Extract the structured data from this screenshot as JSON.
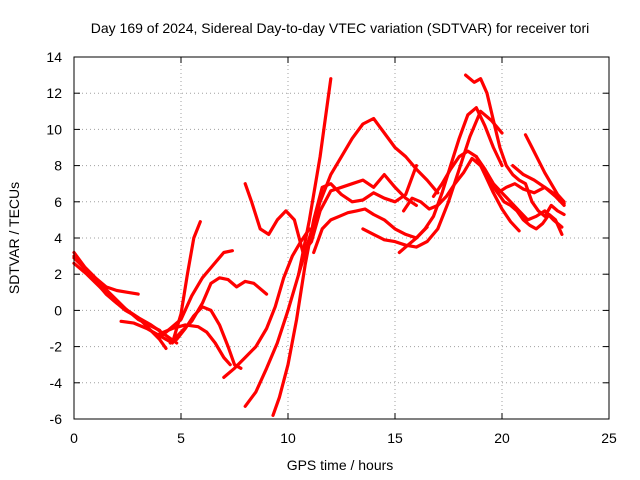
{
  "chart_data": {
    "type": "scatter",
    "title": "Day 169 of 2024, Sidereal Day-to-day VTEC variation (SDTVAR) for receiver tori",
    "xlabel": "GPS time / hours",
    "ylabel": "SDTVAR / TECUs",
    "xlim": [
      0,
      25
    ],
    "ylim": [
      -6,
      14
    ],
    "xticks": [
      0,
      5,
      10,
      15,
      20,
      25
    ],
    "yticks": [
      -6,
      -4,
      -2,
      0,
      2,
      4,
      6,
      8,
      10,
      12,
      14
    ],
    "grid": true,
    "marker": "+",
    "color": "#ff0000",
    "series": [
      {
        "x": [
          0.0,
          0.5,
          1.0,
          1.5,
          2.0,
          2.5,
          3.0
        ],
        "y": [
          3.2,
          2.4,
          1.8,
          1.3,
          1.1,
          1.0,
          0.9
        ]
      },
      {
        "x": [
          0.0,
          0.5,
          1.0,
          1.5,
          2.0,
          2.5,
          3.0,
          3.5,
          4.0,
          4.3
        ],
        "y": [
          3.0,
          2.3,
          1.6,
          0.9,
          0.4,
          0.0,
          -0.4,
          -1.0,
          -1.6,
          -2.1
        ]
      },
      {
        "x": [
          0.0,
          0.6,
          1.2,
          1.8,
          2.4,
          3.0,
          3.5,
          4.0
        ],
        "y": [
          2.9,
          2.2,
          1.5,
          0.8,
          0.1,
          -0.5,
          -0.8,
          -1.1
        ]
      },
      {
        "x": [
          0.0,
          0.6,
          1.2,
          1.8,
          2.4,
          3.0,
          3.6,
          4.2,
          4.8
        ],
        "y": [
          2.6,
          2.0,
          1.3,
          0.6,
          0.0,
          -0.4,
          -0.8,
          -1.3,
          -1.8
        ]
      },
      {
        "x": [
          2.2,
          2.8,
          3.4,
          4.0,
          4.6,
          5.0,
          5.3,
          5.6,
          5.9
        ],
        "y": [
          -0.6,
          -0.7,
          -1.0,
          -1.4,
          -1.8,
          -0.2,
          2.0,
          4.0,
          4.9
        ]
      },
      {
        "x": [
          4.0,
          4.5,
          5.0,
          5.5,
          6.0,
          6.5,
          7.0,
          7.4
        ],
        "y": [
          -1.5,
          -1.0,
          -0.5,
          0.8,
          1.8,
          2.5,
          3.2,
          3.3
        ]
      },
      {
        "x": [
          4.5,
          5.0,
          5.5,
          6.0,
          6.4,
          6.8,
          7.2,
          7.6,
          8.0,
          8.4,
          9.0
        ],
        "y": [
          -1.8,
          -1.2,
          -0.6,
          0.4,
          1.5,
          1.8,
          1.7,
          1.3,
          1.6,
          1.5,
          0.9
        ]
      },
      {
        "x": [
          4.8,
          5.2,
          5.6,
          6.0,
          6.4,
          6.8,
          7.2,
          7.5,
          7.8
        ],
        "y": [
          -1.6,
          -1.0,
          -0.3,
          0.2,
          0.0,
          -0.8,
          -2.0,
          -3.0,
          -3.2
        ]
      },
      {
        "x": [
          4.0,
          4.6,
          5.2,
          5.8,
          6.2,
          6.6,
          7.0,
          7.3
        ],
        "y": [
          -1.3,
          -1.0,
          -0.8,
          -0.9,
          -1.2,
          -1.8,
          -2.6,
          -3.0
        ]
      },
      {
        "x": [
          7.0,
          7.5,
          8.0,
          8.5,
          9.0,
          9.4,
          9.8,
          10.2,
          10.6,
          11.0
        ],
        "y": [
          -3.7,
          -3.2,
          -2.6,
          -2.0,
          -1.0,
          0.2,
          1.8,
          3.0,
          3.8,
          4.5
        ]
      },
      {
        "x": [
          8.0,
          8.5,
          9.0,
          9.5,
          10.0,
          10.5,
          11.0,
          11.5,
          12.0
        ],
        "y": [
          -5.3,
          -4.5,
          -3.2,
          -1.8,
          0.0,
          2.0,
          5.0,
          8.5,
          12.8
        ]
      },
      {
        "x": [
          9.3,
          9.6,
          10.0,
          10.4,
          10.8,
          11.2,
          11.6,
          12.0,
          12.5,
          13.0,
          13.5,
          14.0,
          14.5,
          15.0,
          15.5,
          16.0
        ],
        "y": [
          -5.8,
          -4.8,
          -3.0,
          -0.5,
          2.5,
          5.0,
          6.8,
          7.0,
          6.4,
          6.0,
          6.1,
          6.5,
          6.2,
          6.0,
          6.4,
          8.0
        ]
      },
      {
        "x": [
          8.0,
          8.3,
          8.7,
          9.1,
          9.5,
          9.9,
          10.3,
          10.7,
          11.1,
          11.5,
          12.0,
          12.5,
          13.0,
          13.5,
          14.0,
          14.5,
          15.0,
          15.5,
          16.0
        ],
        "y": [
          7.0,
          6.0,
          4.5,
          4.2,
          5.0,
          5.5,
          5.0,
          3.2,
          3.8,
          5.5,
          6.6,
          6.8,
          7.0,
          7.2,
          6.8,
          7.5,
          6.8,
          6.2,
          5.8
        ]
      },
      {
        "x": [
          10.5,
          11.0,
          11.5,
          12.0,
          12.5,
          13.0,
          13.5,
          14.0,
          14.5,
          15.0,
          15.5,
          16.0,
          16.5,
          17.0
        ],
        "y": [
          2.0,
          4.0,
          6.0,
          7.5,
          8.5,
          9.5,
          10.3,
          10.6,
          9.8,
          9.0,
          8.5,
          7.8,
          7.2,
          6.5
        ]
      },
      {
        "x": [
          11.2,
          11.6,
          12.0,
          12.4,
          12.8,
          13.2,
          13.6,
          14.0,
          14.5,
          15.0,
          15.5,
          16.0,
          16.5
        ],
        "y": [
          3.2,
          4.5,
          5.0,
          5.2,
          5.4,
          5.5,
          5.6,
          5.3,
          5.0,
          4.5,
          4.2,
          4.0,
          4.6
        ]
      },
      {
        "x": [
          13.5,
          14.0,
          14.5,
          15.0,
          15.5,
          16.0,
          16.5,
          17.0,
          17.5,
          18.0,
          18.5,
          19.0,
          19.5,
          20.0
        ],
        "y": [
          4.5,
          4.2,
          3.9,
          3.8,
          3.6,
          3.5,
          3.8,
          4.5,
          6.0,
          7.8,
          9.6,
          11.0,
          10.5,
          9.8
        ]
      },
      {
        "x": [
          15.2,
          15.6,
          16.0,
          16.4,
          16.8,
          17.2,
          17.6,
          18.0,
          18.4,
          18.8,
          19.2,
          19.6,
          20.0
        ],
        "y": [
          3.2,
          3.6,
          4.0,
          4.5,
          5.2,
          6.5,
          8.0,
          9.5,
          10.8,
          11.2,
          10.2,
          9.0,
          8.0
        ]
      },
      {
        "x": [
          15.4,
          15.8,
          16.2,
          16.6,
          17.0,
          17.4,
          17.8,
          18.2,
          18.6,
          19.0,
          19.4,
          19.8,
          20.2,
          20.6,
          21.0,
          21.5,
          22.0,
          22.5,
          22.9
        ],
        "y": [
          5.5,
          6.2,
          6.0,
          5.6,
          5.8,
          6.3,
          7.0,
          7.6,
          8.4,
          8.0,
          7.2,
          6.5,
          6.8,
          7.0,
          6.7,
          6.5,
          6.8,
          6.3,
          5.8
        ]
      },
      {
        "x": [
          16.8,
          17.2,
          17.6,
          18.0,
          18.4,
          18.8,
          19.2,
          19.6,
          20.0,
          20.4,
          20.8,
          21.2,
          21.6,
          22.0,
          22.4,
          22.8
        ],
        "y": [
          6.3,
          7.0,
          7.8,
          8.5,
          8.8,
          8.5,
          7.8,
          7.0,
          6.5,
          6.0,
          5.5,
          5.0,
          5.2,
          5.5,
          5.0,
          4.6
        ]
      },
      {
        "x": [
          18.3,
          18.7,
          19.0,
          19.3,
          19.6,
          19.9,
          20.2,
          20.5,
          20.8,
          21.1,
          21.4,
          21.7,
          22.0,
          22.3,
          22.6,
          22.9
        ],
        "y": [
          13.0,
          12.6,
          12.8,
          12.0,
          10.5,
          9.0,
          8.0,
          7.5,
          7.2,
          7.0,
          6.0,
          5.5,
          5.2,
          5.8,
          5.5,
          5.3
        ]
      },
      {
        "x": [
          19.5,
          19.8,
          20.1,
          20.4,
          20.7,
          21.0,
          21.3,
          21.6,
          21.9,
          22.2,
          22.5,
          22.8
        ],
        "y": [
          7.0,
          6.5,
          6.0,
          5.8,
          5.5,
          5.0,
          4.7,
          4.5,
          4.8,
          5.3,
          5.0,
          4.2
        ]
      },
      {
        "x": [
          18.8,
          19.2,
          19.6,
          20.0,
          20.4,
          20.8
        ],
        "y": [
          8.5,
          7.5,
          6.5,
          5.6,
          4.9,
          4.4
        ]
      },
      {
        "x": [
          20.5,
          21.0,
          21.5,
          22.0,
          22.5,
          22.9
        ],
        "y": [
          8.0,
          7.5,
          7.2,
          6.8,
          6.4,
          5.9
        ]
      },
      {
        "x": [
          21.1,
          21.4,
          21.7,
          22.0,
          22.3,
          22.6,
          22.9
        ],
        "y": [
          9.7,
          9.0,
          8.3,
          7.6,
          7.0,
          6.4,
          6.0
        ]
      }
    ]
  }
}
